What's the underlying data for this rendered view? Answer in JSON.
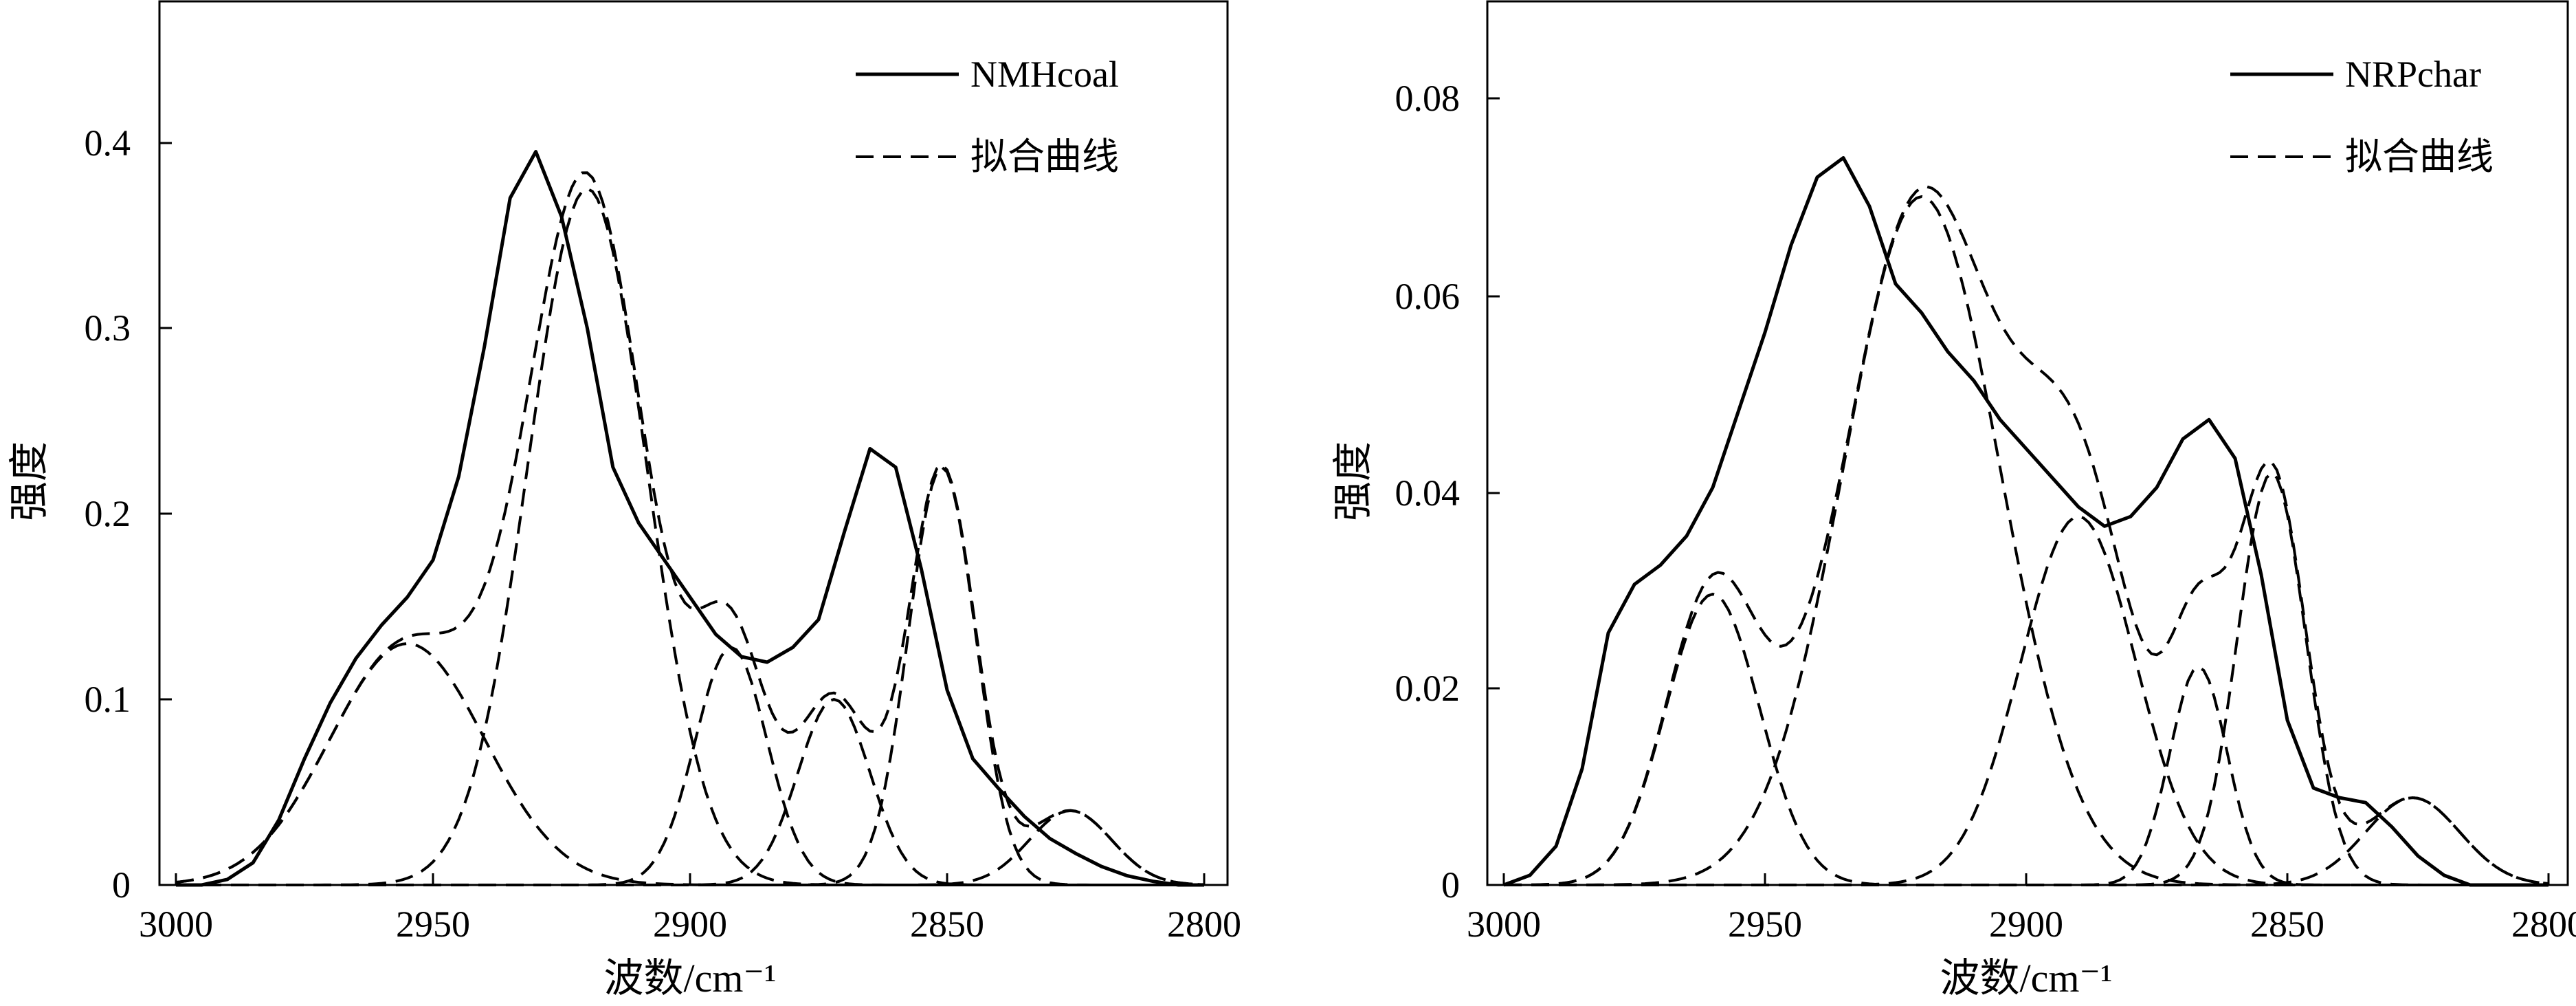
{
  "chart_data": [
    {
      "type": "line",
      "title": "",
      "xlabel": "波数/cm⁻¹",
      "ylabel": "强度",
      "xlim": [
        3000,
        2800
      ],
      "ylim": [
        0,
        0.47
      ],
      "xticks": [
        3000,
        2950,
        2900,
        2850,
        2800
      ],
      "xtick_labels": [
        "3000",
        "2950",
        "2900",
        "2850",
        "2800"
      ],
      "yticks": [
        0,
        0.1,
        0.2,
        0.3,
        0.4
      ],
      "ytick_labels": [
        "0",
        "0.1",
        "0.2",
        "0.3",
        "0.4"
      ],
      "legend": {
        "position": "top-right",
        "entries": [
          {
            "label": "NMHcoal",
            "style": "solid"
          },
          {
            "label": "拟合曲线",
            "style": "dashed"
          }
        ]
      },
      "measured": {
        "name": "NMHcoal",
        "x": [
          3000,
          2995,
          2990,
          2985,
          2980,
          2975,
          2970,
          2965,
          2960,
          2955,
          2950,
          2945,
          2940,
          2935,
          2930,
          2925,
          2920,
          2915,
          2910,
          2905,
          2900,
          2895,
          2890,
          2885,
          2880,
          2875,
          2870,
          2865,
          2860,
          2855,
          2850,
          2845,
          2840,
          2835,
          2830,
          2825,
          2820,
          2815,
          2810,
          2805,
          2800
        ],
        "y": [
          0.0,
          0.0,
          0.003,
          0.012,
          0.035,
          0.068,
          0.098,
          0.122,
          0.14,
          0.155,
          0.175,
          0.22,
          0.29,
          0.37,
          0.395,
          0.36,
          0.3,
          0.225,
          0.195,
          0.175,
          0.155,
          0.135,
          0.123,
          0.12,
          0.128,
          0.143,
          0.19,
          0.235,
          0.225,
          0.17,
          0.105,
          0.068,
          0.052,
          0.037,
          0.025,
          0.017,
          0.01,
          0.005,
          0.002,
          0.0,
          0.0
        ]
      },
      "fit_peaks": [
        {
          "center": 2955,
          "height": 0.13,
          "width": 15
        },
        {
          "center": 2920,
          "height": 0.375,
          "width": 11.5
        },
        {
          "center": 2892,
          "height": 0.128,
          "width": 7
        },
        {
          "center": 2872,
          "height": 0.1,
          "width": 7
        },
        {
          "center": 2851,
          "height": 0.225,
          "width": 6.5
        },
        {
          "center": 2826,
          "height": 0.04,
          "width": 8
        }
      ]
    },
    {
      "type": "line",
      "title": "",
      "xlabel": "波数/cm⁻¹",
      "ylabel": "强度",
      "xlim": [
        3000,
        2800
      ],
      "ylim": [
        0,
        0.09
      ],
      "xticks": [
        3000,
        2950,
        2900,
        2850,
        2800
      ],
      "xtick_labels": [
        "3000",
        "2950",
        "2900",
        "2850",
        "2800"
      ],
      "yticks": [
        0,
        0.02,
        0.04,
        0.06,
        0.08
      ],
      "ytick_labels": [
        "0",
        "0.02",
        "0.04",
        "0.06",
        "0.08"
      ],
      "legend": {
        "position": "top-right",
        "entries": [
          {
            "label": "NRPchar",
            "style": "solid"
          },
          {
            "label": "拟合曲线",
            "style": "dashed"
          }
        ]
      },
      "measured": {
        "name": "NRPchar",
        "x": [
          3000,
          2995,
          2990,
          2985,
          2980,
          2975,
          2970,
          2965,
          2960,
          2955,
          2950,
          2945,
          2940,
          2935,
          2930,
          2925,
          2920,
          2915,
          2910,
          2905,
          2900,
          2895,
          2890,
          2885,
          2880,
          2875,
          2870,
          2865,
          2860,
          2855,
          2850,
          2845,
          2840,
          2835,
          2830,
          2825,
          2820,
          2815,
          2810,
          2805,
          2800
        ],
        "y": [
          0.0,
          0.001,
          0.004,
          0.012,
          0.026,
          0.031,
          0.033,
          0.036,
          0.041,
          0.049,
          0.057,
          0.066,
          0.073,
          0.075,
          0.07,
          0.062,
          0.059,
          0.055,
          0.052,
          0.048,
          0.045,
          0.042,
          0.039,
          0.037,
          0.038,
          0.041,
          0.046,
          0.048,
          0.044,
          0.032,
          0.017,
          0.01,
          0.009,
          0.0085,
          0.006,
          0.003,
          0.001,
          0.0,
          0.0,
          0.0,
          0.0
        ]
      },
      "fit_peaks": [
        {
          "center": 2960,
          "height": 0.03,
          "width": 9
        },
        {
          "center": 2920,
          "height": 0.071,
          "width": 15
        },
        {
          "center": 2890,
          "height": 0.038,
          "width": 11
        },
        {
          "center": 2867,
          "height": 0.0225,
          "width": 5.5
        },
        {
          "center": 2853,
          "height": 0.0425,
          "width": 6.5
        },
        {
          "center": 2826,
          "height": 0.009,
          "width": 9
        }
      ]
    }
  ]
}
